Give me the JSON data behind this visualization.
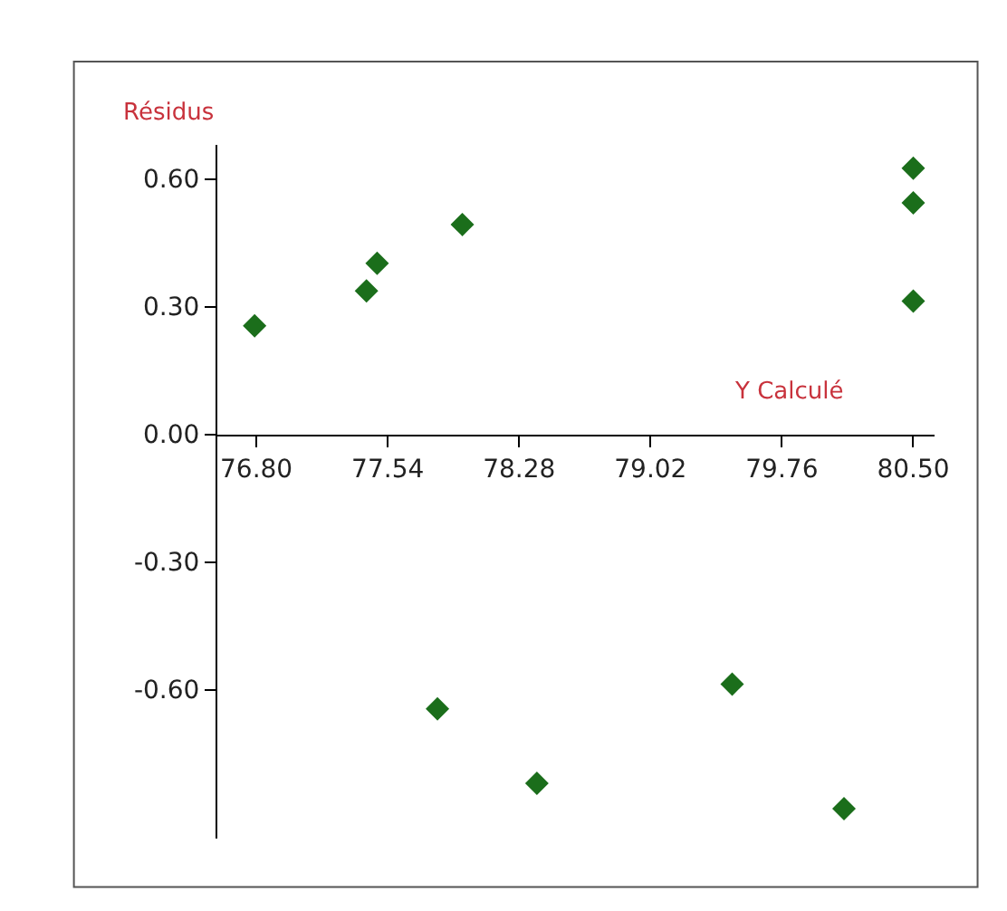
{
  "chart_data": {
    "type": "scatter",
    "xlabel": "Y Calculé",
    "ylabel": "Résidus",
    "x": [
      76.79,
      77.42,
      77.48,
      77.96,
      80.5,
      80.5,
      80.5,
      77.82,
      78.38,
      79.48,
      80.11
    ],
    "series": [
      {
        "color": "#1b6e1b",
        "values": [
          0.255,
          0.337,
          0.402,
          0.493,
          0.625,
          0.544,
          0.313,
          -0.645,
          -0.82,
          -0.587,
          -0.88
        ]
      }
    ],
    "xlim": [
      76.58,
      80.62
    ],
    "ylim": [
      -0.95,
      0.68
    ],
    "xticks": [
      {
        "value": 76.8,
        "label": "76.80"
      },
      {
        "value": 77.54,
        "label": "77.54"
      },
      {
        "value": 78.28,
        "label": "78.28"
      },
      {
        "value": 79.02,
        "label": "79.02"
      },
      {
        "value": 79.76,
        "label": "79.76"
      },
      {
        "value": 80.5,
        "label": "80.50"
      }
    ],
    "yticks": [
      {
        "value": 0.6,
        "label": "0.60"
      },
      {
        "value": 0.3,
        "label": "0.30"
      },
      {
        "value": 0.0,
        "label": "0.00"
      },
      {
        "value": -0.3,
        "label": "-0.30"
      },
      {
        "value": -0.6,
        "label": "-0.60"
      }
    ],
    "marker": "diamond",
    "legend": false
  }
}
